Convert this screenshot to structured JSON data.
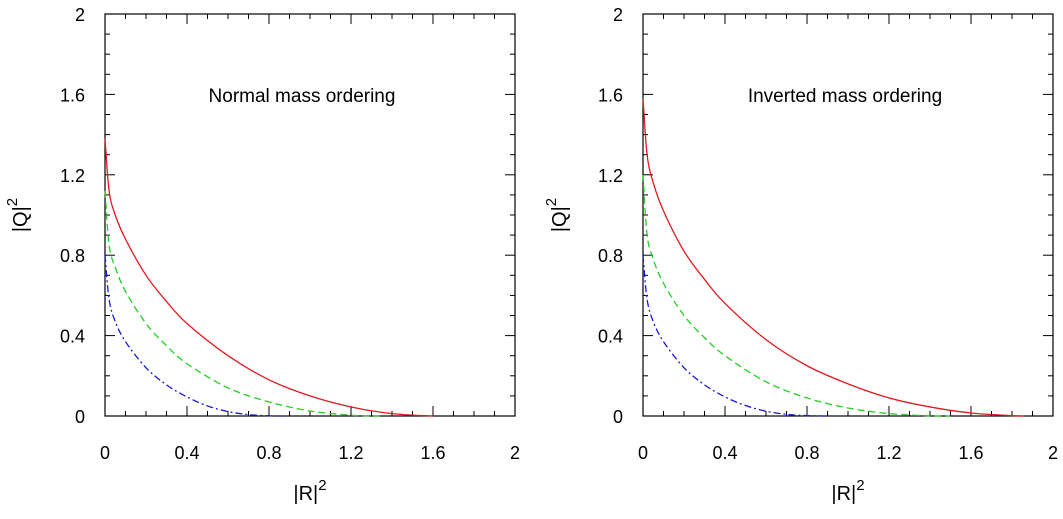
{
  "chart_data": [
    {
      "type": "line",
      "annotation": "Normal mass ordering",
      "xlabel": "|R|",
      "xlabel_sup": "2",
      "ylabel": "|Q|",
      "ylabel_sup": "2",
      "xlim": [
        0,
        2
      ],
      "ylim": [
        0,
        2
      ],
      "xticks": [
        "0",
        "0.4",
        "0.8",
        "1.2",
        "1.6",
        "2"
      ],
      "yticks": [
        "0",
        "0.4",
        "0.8",
        "1.2",
        "1.6",
        "2"
      ],
      "grid": false,
      "series": [
        {
          "color": "#e0191e",
          "style": "solid",
          "x": [
            0,
            0.02,
            0.05,
            0.1,
            0.2,
            0.3,
            0.4,
            0.6,
            0.8,
            1.0,
            1.2,
            1.4,
            1.6
          ],
          "y": [
            1.38,
            1.12,
            1.0,
            0.88,
            0.7,
            0.57,
            0.46,
            0.3,
            0.18,
            0.1,
            0.045,
            0.012,
            0.0
          ]
        },
        {
          "color": "#1fd21f",
          "style": "dashed",
          "x": [
            0,
            0.02,
            0.05,
            0.1,
            0.2,
            0.3,
            0.4,
            0.6,
            0.8,
            1.0,
            1.2,
            1.34
          ],
          "y": [
            1.12,
            0.85,
            0.74,
            0.62,
            0.46,
            0.35,
            0.26,
            0.14,
            0.07,
            0.025,
            0.004,
            0.0
          ]
        },
        {
          "color": "#1a1ad2",
          "style": "dashdot",
          "x": [
            0,
            0.02,
            0.05,
            0.1,
            0.2,
            0.3,
            0.4,
            0.5,
            0.6,
            0.7,
            0.8,
            0.87
          ],
          "y": [
            0.8,
            0.58,
            0.47,
            0.37,
            0.24,
            0.155,
            0.095,
            0.05,
            0.022,
            0.007,
            0.001,
            0.0
          ]
        }
      ]
    },
    {
      "type": "line",
      "annotation": "Inverted mass ordering",
      "xlabel": "|R|",
      "xlabel_sup": "2",
      "ylabel": "|Q|",
      "ylabel_sup": "2",
      "xlim": [
        0,
        2
      ],
      "ylim": [
        0,
        2
      ],
      "xticks": [
        "0",
        "0.4",
        "0.8",
        "1.2",
        "1.6",
        "2"
      ],
      "yticks": [
        "0",
        "0.4",
        "0.8",
        "1.2",
        "1.6",
        "2"
      ],
      "grid": false,
      "series": [
        {
          "color": "#e0191e",
          "style": "solid",
          "x": [
            0,
            0.02,
            0.05,
            0.1,
            0.2,
            0.3,
            0.4,
            0.6,
            0.8,
            1.0,
            1.2,
            1.4,
            1.6,
            1.8,
            1.86
          ],
          "y": [
            1.58,
            1.3,
            1.16,
            1.02,
            0.82,
            0.68,
            0.56,
            0.38,
            0.25,
            0.16,
            0.09,
            0.045,
            0.015,
            0.002,
            0.0
          ]
        },
        {
          "color": "#1fd21f",
          "style": "dashed",
          "x": [
            0,
            0.02,
            0.05,
            0.1,
            0.2,
            0.3,
            0.4,
            0.6,
            0.8,
            1.0,
            1.2,
            1.4,
            1.5
          ],
          "y": [
            1.2,
            0.9,
            0.78,
            0.66,
            0.5,
            0.39,
            0.3,
            0.17,
            0.09,
            0.04,
            0.012,
            0.001,
            0.0
          ]
        },
        {
          "color": "#1a1ad2",
          "style": "dashdot",
          "x": [
            0,
            0.02,
            0.05,
            0.1,
            0.2,
            0.3,
            0.4,
            0.5,
            0.6,
            0.7,
            0.8,
            0.9
          ],
          "y": [
            0.8,
            0.58,
            0.47,
            0.37,
            0.24,
            0.155,
            0.095,
            0.052,
            0.024,
            0.008,
            0.002,
            0.0
          ]
        }
      ]
    }
  ]
}
